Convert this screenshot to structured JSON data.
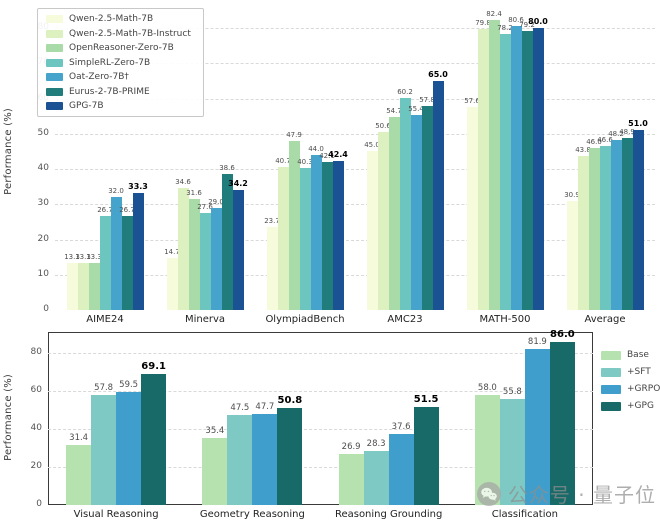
{
  "watermark": {
    "icon": "wechat-icon",
    "text": "公众号 · 量子位"
  },
  "chart_data": [
    {
      "name": "math-benchmark-comparison-7b-models",
      "type": "bar",
      "title": "",
      "xlabel": "",
      "ylabel": "Performance (%)",
      "ylim": [
        0,
        85.7
      ],
      "yticks": [
        0,
        10,
        20,
        30,
        40,
        50,
        60,
        70,
        80
      ],
      "grid": "dashed-horizontal",
      "legend_position": "upper-left",
      "categories": [
        "AIME24",
        "Minerva",
        "OlympiadBench",
        "AMC23",
        "MATH-500",
        "Average"
      ],
      "series": [
        {
          "name": "Qwen-2.5-Math-7B",
          "color": "#f6fbdc",
          "values": [
            13.3,
            14.7,
            23.7,
            45.0,
            57.6,
            30.9
          ]
        },
        {
          "name": "Qwen-2.5-Math-7B-Instruct",
          "color": "#dcf0c0",
          "values": [
            13.3,
            34.6,
            40.7,
            50.6,
            79.8,
            43.8
          ]
        },
        {
          "name": "OpenReasoner-Zero-7B",
          "color": "#a9dba8",
          "values": [
            13.3,
            31.6,
            47.9,
            54.7,
            82.4,
            46.0
          ]
        },
        {
          "name": "SimpleRL-Zero-7B",
          "color": "#6cc5bf",
          "values": [
            26.7,
            27.6,
            40.3,
            60.2,
            78.2,
            46.6
          ]
        },
        {
          "name": "Oat-Zero-7B†",
          "color": "#46a4cc",
          "values": [
            32.0,
            29.0,
            44.0,
            55.4,
            80.6,
            48.2
          ]
        },
        {
          "name": "Eurus-2-7B-PRIME",
          "color": "#217d7b",
          "values": [
            26.7,
            38.6,
            42.1,
            57.8,
            79.2,
            48.9
          ]
        },
        {
          "name": "GPG-7B",
          "color": "#1a5294",
          "values": [
            33.3,
            34.2,
            42.4,
            65.0,
            80.0,
            51.0
          ],
          "emphasis": true
        }
      ]
    },
    {
      "name": "multimodal-training-method-comparison",
      "type": "bar",
      "title": "",
      "xlabel": "",
      "ylabel": "Performance (%)",
      "ylim": [
        0,
        91
      ],
      "yticks": [
        0,
        20,
        40,
        60,
        80
      ],
      "grid": "dashed-horizontal",
      "legend_position": "right",
      "boxed": true,
      "categories": [
        "Visual Reasoning",
        "Geometry Reasoning",
        "Reasoning Grounding",
        "Classification"
      ],
      "series": [
        {
          "name": "Base",
          "color": "#b5e2ae",
          "values": [
            31.4,
            35.4,
            26.9,
            58.0
          ]
        },
        {
          "name": "+SFT",
          "color": "#7fc9c5",
          "values": [
            57.8,
            47.5,
            28.3,
            55.8
          ]
        },
        {
          "name": "+GRPO",
          "color": "#3f9ecb",
          "values": [
            59.5,
            47.7,
            37.6,
            81.9
          ]
        },
        {
          "name": "+GPG",
          "color": "#186a68",
          "values": [
            69.1,
            50.8,
            51.5,
            86.0
          ],
          "emphasis": true
        }
      ]
    }
  ]
}
